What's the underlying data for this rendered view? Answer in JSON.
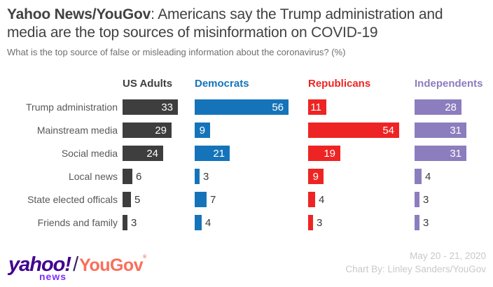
{
  "title": {
    "lead": "Yahoo News/YouGov",
    "rest": ": Americans say the Trump administration and media are the top sources of misinformation on COVID-19"
  },
  "subtitle": "What is the top source of false or misleading information about the coronavirus? (%)",
  "chart_data": {
    "type": "bar",
    "orientation": "horizontal",
    "unit": "%",
    "title": "Yahoo News/YouGov: Americans say the Trump administration and media are the top sources of misinformation on COVID-19",
    "categories": [
      "Trump administration",
      "Mainstream media",
      "Social media",
      "Local news",
      "State elected officals",
      "Friends and family"
    ],
    "series": [
      {
        "name": "US Adults",
        "color": "#3E3E3E",
        "values": [
          33,
          29,
          24,
          6,
          5,
          3
        ]
      },
      {
        "name": "Democrats",
        "color": "#1574B9",
        "values": [
          56,
          9,
          21,
          3,
          7,
          4
        ]
      },
      {
        "name": "Republicans",
        "color": "#EE2424",
        "values": [
          11,
          54,
          19,
          9,
          4,
          3
        ]
      },
      {
        "name": "Independents",
        "color": "#8C7DBE",
        "values": [
          28,
          31,
          31,
          4,
          3,
          3
        ]
      }
    ],
    "xlim": [
      0,
      60
    ],
    "grid": false,
    "value_labels": true,
    "legend_position": "column-headers",
    "inside_label_min_value": 9
  },
  "footer": {
    "logo": {
      "yahoo": "yahoo!",
      "news": "news",
      "slash": "/",
      "yougov": "YouGov",
      "registered": "®",
      "yahoo_color": "#400090",
      "news_color": "#7D2EFF",
      "yougov_color": "#FA6E5A"
    },
    "date_range": "May 20 - 21, 2020",
    "credit": "Chart By: Linley Sanders/YouGov"
  }
}
